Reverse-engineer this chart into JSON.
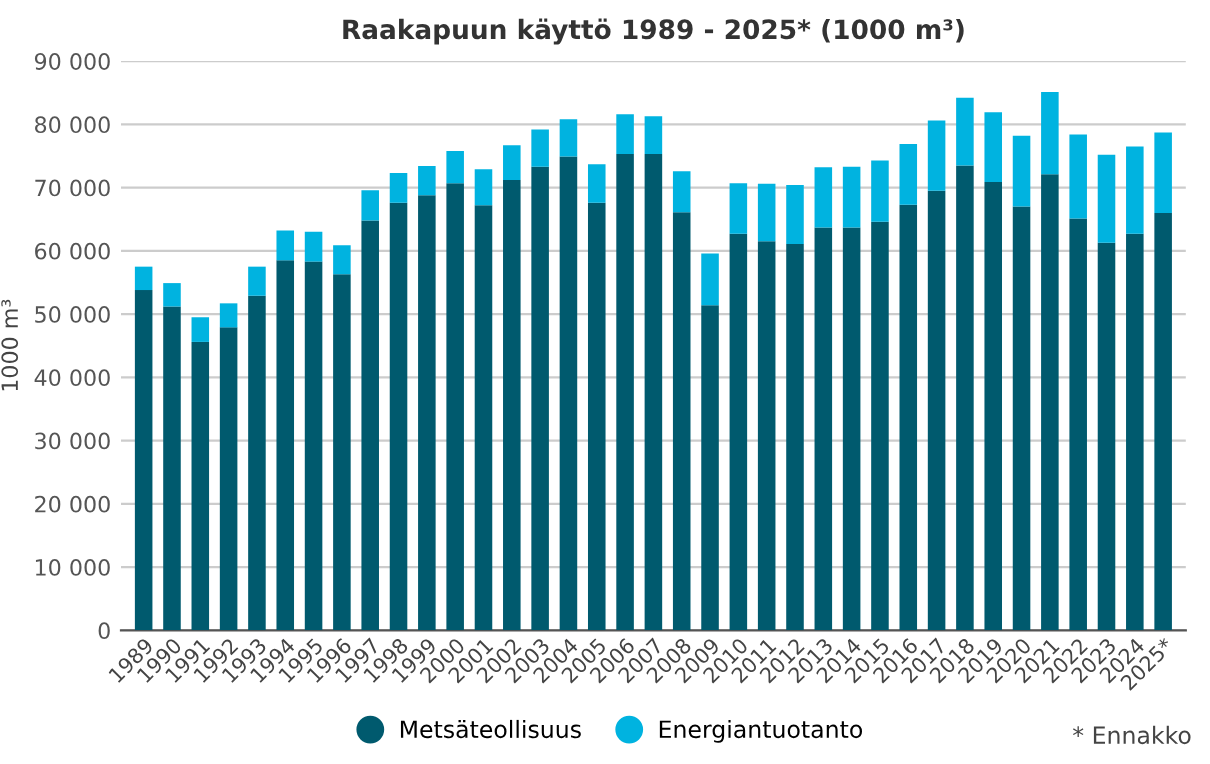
{
  "chart_data": {
    "type": "bar",
    "stacked": true,
    "title": "Raakapuun käyttö 1989 - 2025* (1000 m³)",
    "ylabel": "1000 m³",
    "categories": [
      "1989",
      "1990",
      "1991",
      "1992",
      "1993",
      "1994",
      "1995",
      "1996",
      "1997",
      "1998",
      "1999",
      "2000",
      "2001",
      "2002",
      "2003",
      "2004",
      "2005",
      "2006",
      "2007",
      "2008",
      "2009",
      "2010",
      "2011",
      "2012",
      "2013",
      "2014",
      "2015",
      "2016",
      "2017",
      "2018",
      "2019",
      "2020",
      "2021",
      "2022",
      "2023",
      "2024",
      "2025*"
    ],
    "series": [
      {
        "name": "Metsäteollisuus",
        "color": "#005a6e",
        "values": [
          53800,
          51200,
          45600,
          47900,
          52900,
          58500,
          58300,
          56300,
          64800,
          67600,
          68800,
          70700,
          67200,
          71200,
          73300,
          74900,
          67600,
          75300,
          75300,
          66100,
          51400,
          62700,
          61500,
          61100,
          63700,
          63700,
          64600,
          67300,
          69500,
          73500,
          70900,
          67000,
          72100,
          65100,
          61300,
          62700,
          66000
        ]
      },
      {
        "name": "Energiantuotanto",
        "color": "#00b3e0",
        "values": [
          3700,
          3700,
          3900,
          3800,
          4600,
          4700,
          4700,
          4600,
          4800,
          4700,
          4600,
          5100,
          5700,
          5500,
          5900,
          5900,
          6100,
          6300,
          6000,
          6500,
          8200,
          8000,
          9100,
          9300,
          9500,
          9600,
          9700,
          9600,
          11100,
          10700,
          11000,
          11200,
          13000,
          13300,
          13900,
          13800,
          12700
        ]
      }
    ],
    "ylim": [
      0,
      90000
    ],
    "yticks": [
      0,
      {
        "value": 10000,
        "label": "10 000"
      },
      {
        "value": 20000,
        "label": "20 000"
      },
      {
        "value": 30000,
        "label": "30 000"
      },
      {
        "value": 40000,
        "label": "40 000"
      },
      {
        "value": 50000,
        "label": "50 000"
      },
      {
        "value": 60000,
        "label": "60 000"
      },
      {
        "value": 70000,
        "label": "70 000"
      },
      {
        "value": 80000,
        "label": "80 000"
      },
      {
        "value": 90000,
        "label": "90 000"
      }
    ],
    "grid": "y",
    "legend": "bottom",
    "marker": "circle",
    "annotations": [
      "* Ennakko"
    ]
  }
}
